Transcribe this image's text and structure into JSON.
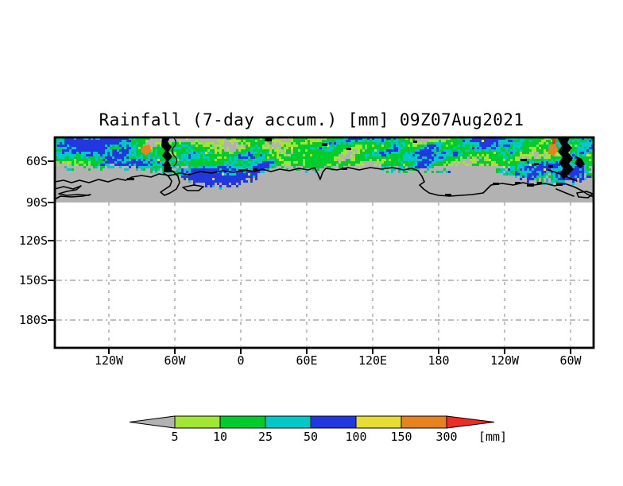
{
  "title": "Rainfall (7-day accum.) [mm] 09Z07Aug2021",
  "chart_data": {
    "type": "heatmap",
    "title": "Rainfall (7-day accum.) [mm] 09Z07Aug2021",
    "variable": "Rainfall (7-day accum.)",
    "unit": "mm",
    "timestamp_label": "09Z07Aug2021",
    "x_tick_labels": [
      "120W",
      "60W",
      "0",
      "60E",
      "120E",
      "180",
      "120W",
      "60W"
    ],
    "y_tick_labels": [
      "60S",
      "90S",
      "120S",
      "150S",
      "180S"
    ],
    "grid": "dashed gray lat/lon grid",
    "legend_position": "bottom colorbar with arrow ends",
    "colorbar": {
      "levels": [
        "5",
        "10",
        "25",
        "50",
        "100",
        "150",
        "300"
      ],
      "unit_label": "[mm]",
      "below_min_color": "#b2b2b2",
      "segment_colors": [
        "#a0e632",
        "#00cd2d",
        "#00c8c8",
        "#2337e0",
        "#e6dc32",
        "#e8821e"
      ],
      "above_max_color": "#ee2c24"
    },
    "palette": {
      "background_gray": "#b2b2b2",
      "ygreen": "#a0e632",
      "green": "#00cd2d",
      "cyan": "#00c8c8",
      "blue": "#2337e0",
      "yellow": "#e6dc32",
      "orange": "#e8821e",
      "red": "#ee2c24",
      "land": "#000000",
      "grid": "#a9a9a9"
    }
  }
}
